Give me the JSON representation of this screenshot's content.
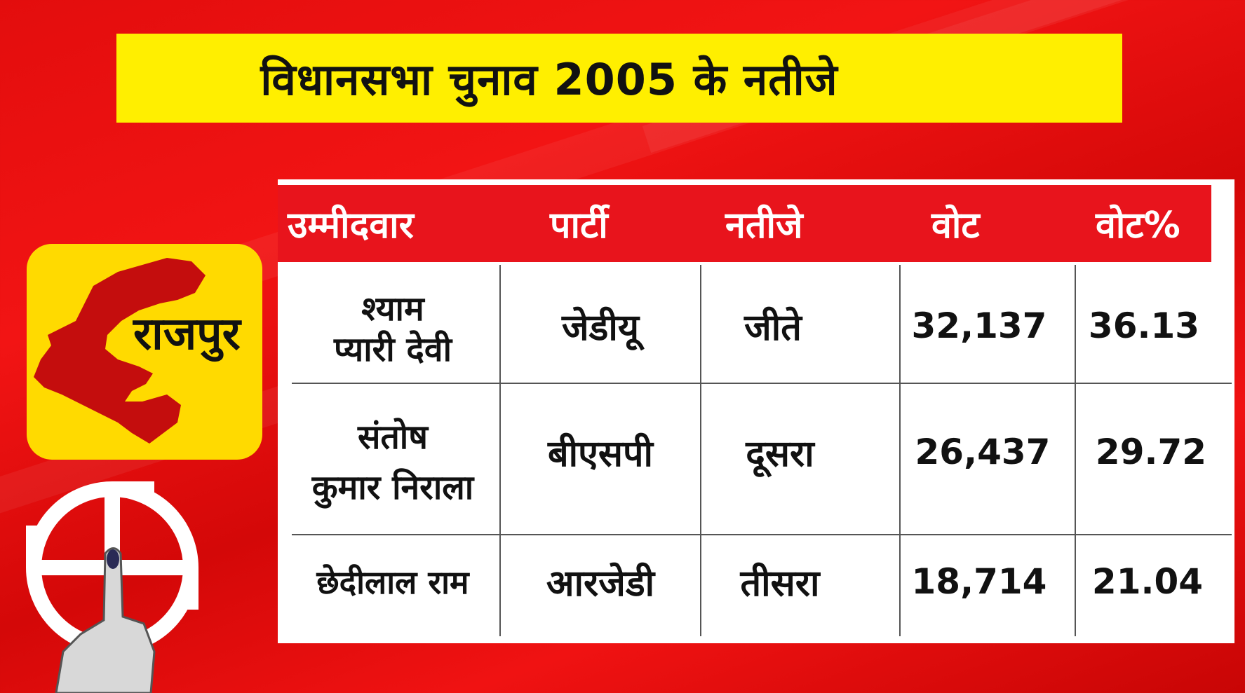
{
  "title": "विधानसभा चुनाव 2005 के नतीजे",
  "constituency": "राजपुर",
  "headers": [
    "उम्मीदवार",
    "पार्टी",
    "नतीजे",
    "वोट",
    "वोट%"
  ],
  "rows": [
    {
      "candidate_line1": "श्याम",
      "candidate_line2": "प्यारी देवी",
      "party": "जेडीयू",
      "result": "जीते",
      "votes": "32,137",
      "vote_pct": "36.13"
    },
    {
      "candidate_line1": "संतोष",
      "candidate_line2": "कुमार निराला",
      "party": "बीएसपी",
      "result": "दूसरा",
      "votes": "26,437",
      "vote_pct": "29.72"
    },
    {
      "candidate_line1": "छेदीलाल राम",
      "candidate_line2": "",
      "party": "आरजेडी",
      "result": "तीसरा",
      "votes": "18,714",
      "vote_pct": "21.04"
    }
  ],
  "colors": {
    "background": "#e30d0d",
    "title_bg": "#ffef00",
    "header_bg": "#e8141c",
    "badge_bg": "#ffda00",
    "map_fill": "#c40d0d"
  },
  "icons": [
    "state-map-icon",
    "election-symbol-icon",
    "inked-finger-icon"
  ]
}
